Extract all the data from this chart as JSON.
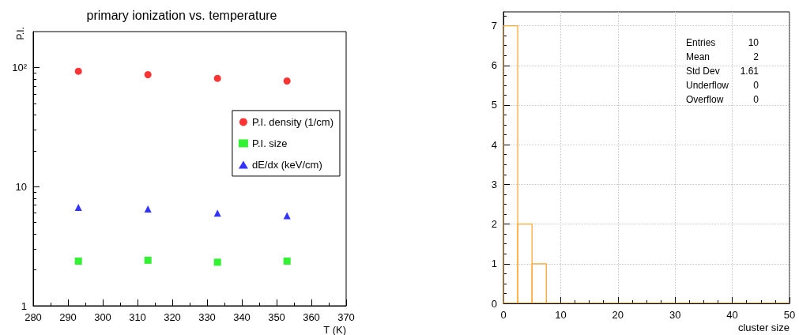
{
  "chart_data": [
    {
      "type": "scatter",
      "title": "primary ionization vs. temperature",
      "xlabel": "T (K)",
      "ylabel": "P.I.",
      "log": "y",
      "grid": false,
      "legend": "right",
      "xlim": [
        280,
        370
      ],
      "xticks": [
        280,
        290,
        300,
        310,
        320,
        330,
        340,
        350,
        360,
        370
      ],
      "ylim": [
        1,
        200
      ],
      "yticks": [
        1,
        10,
        {
          "value": 100,
          "label": "10²"
        }
      ],
      "series": [
        {
          "name": "P.I. density (1/cm)",
          "color": "#ff0000",
          "marker": "circle",
          "x": [
            293,
            313,
            333,
            353
          ],
          "values": [
            93,
            87,
            81,
            77
          ]
        },
        {
          "name": "P.I. size",
          "color": "#00ee00",
          "marker": "square",
          "x": [
            293,
            313,
            333,
            353
          ],
          "values": [
            2.37,
            2.41,
            2.32,
            2.37
          ]
        },
        {
          "name": "dE/dx (keV/cm)",
          "color": "#0000ff",
          "marker": "triangle",
          "x": [
            293,
            313,
            333,
            353
          ],
          "values": [
            6.7,
            6.5,
            6.0,
            5.7
          ]
        }
      ]
    },
    {
      "type": "histogram",
      "xlabel": "cluster size",
      "grid": true,
      "color": "#ffa733",
      "bins": [
        0,
        2.5,
        5,
        7.5,
        10,
        12.5,
        15,
        17.5,
        20,
        22.5,
        25,
        27.5,
        30,
        32.5,
        35,
        37.5,
        40,
        42.5,
        45,
        47.5,
        50
      ],
      "values": [
        7,
        2,
        1,
        0,
        0,
        0,
        0,
        0,
        0,
        0,
        0,
        0,
        0,
        0,
        0,
        0,
        0,
        0,
        0,
        0
      ],
      "xlim": [
        0,
        50
      ],
      "xticks": [
        0,
        10,
        20,
        30,
        40,
        50
      ],
      "ylim": [
        0,
        7.35
      ],
      "yticks": [
        0,
        1,
        2,
        3,
        4,
        5,
        6,
        7
      ],
      "annotations": [
        "Entries",
        "10",
        "Mean",
        "2",
        "Std Dev",
        "1.61",
        "Underflow",
        "0",
        "Overflow",
        "0"
      ]
    }
  ]
}
